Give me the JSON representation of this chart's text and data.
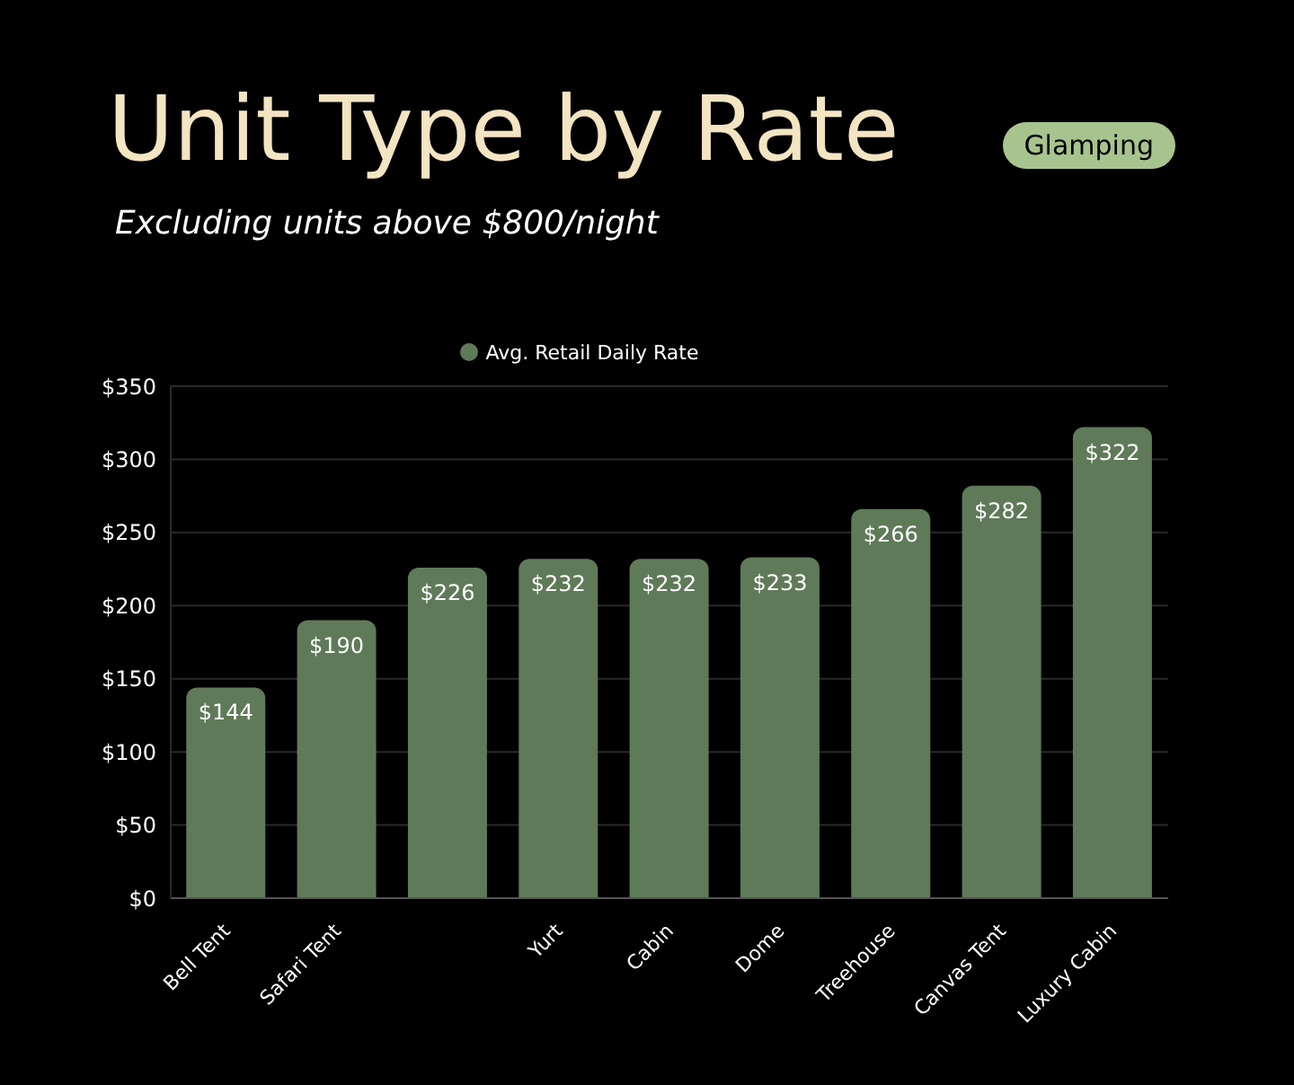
{
  "chart_data": {
    "type": "bar",
    "title": "Unit Type by Rate",
    "subtitle": "Excluding units above $800/night",
    "annotations": [
      "Glamping"
    ],
    "categories": [
      "Bell Tent",
      "Safari Tent",
      null,
      "Yurt",
      "Cabin",
      "Dome",
      "Treehouse",
      "Canvas Tent",
      "Luxury Cabin"
    ],
    "series": [
      {
        "name": "Avg. Retail Daily Rate",
        "color": "#5f7a58",
        "values": [
          144,
          190,
          226,
          232,
          232,
          233,
          266,
          282,
          322
        ],
        "value_labels": [
          "$144",
          "$190",
          "$226",
          "$232",
          "$232",
          "$233",
          "$266",
          "$282",
          "$322"
        ]
      }
    ],
    "ylim": [
      0,
      350
    ],
    "yticks": [
      {
        "value": 0,
        "label": "$0"
      },
      {
        "value": 50,
        "label": "$50"
      },
      {
        "value": 100,
        "label": "$100"
      },
      {
        "value": 150,
        "label": "$150"
      },
      {
        "value": 200,
        "label": "$200"
      },
      {
        "value": 250,
        "label": "$250"
      },
      {
        "value": 300,
        "label": "$300"
      },
      {
        "value": 350,
        "label": "$350"
      }
    ],
    "grid": "y",
    "legend": "top"
  }
}
